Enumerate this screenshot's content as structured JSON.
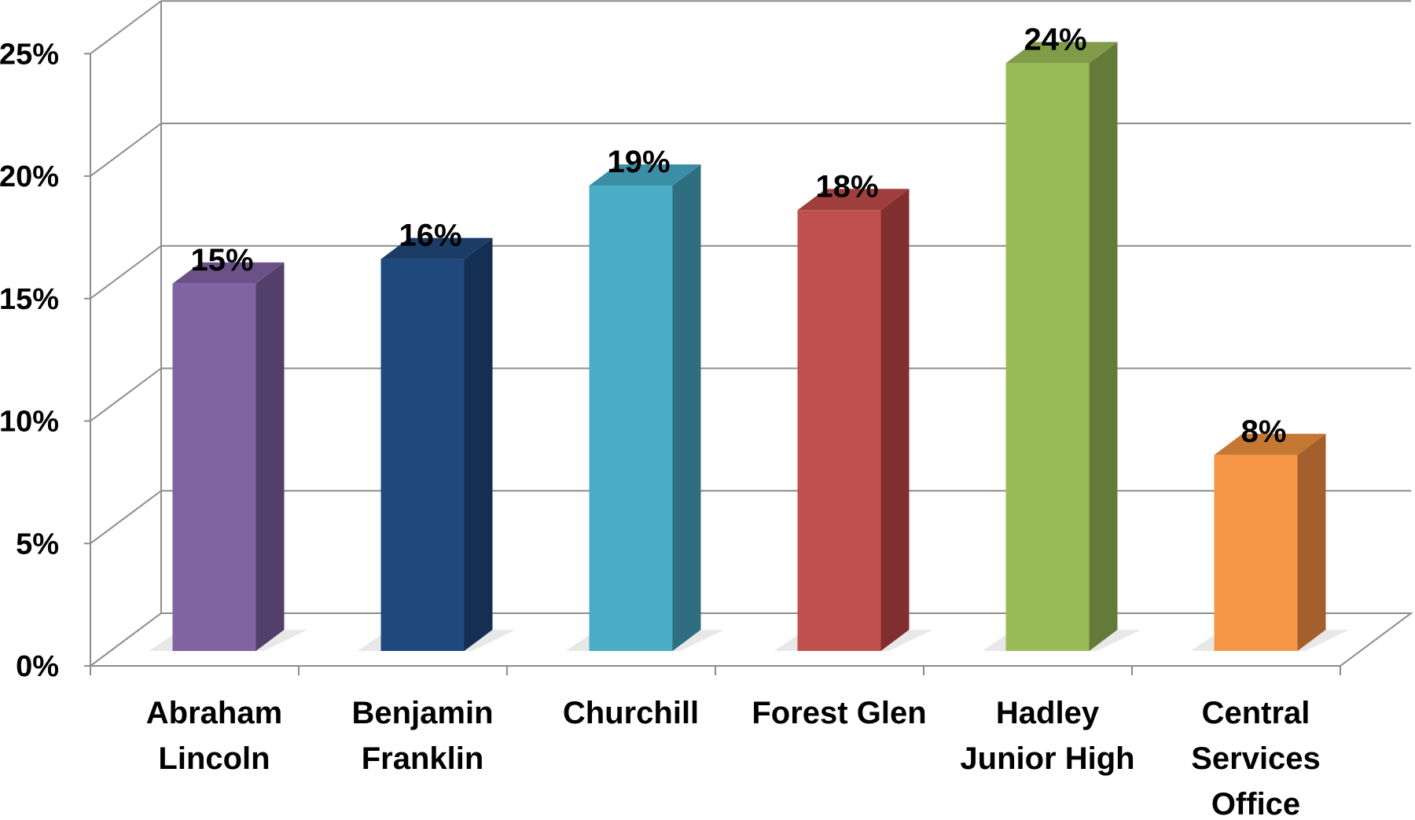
{
  "chart_data": {
    "type": "bar",
    "style": "3d-column",
    "categories": [
      [
        "Abraham",
        "Lincoln"
      ],
      [
        "Benjamin",
        "Franklin"
      ],
      [
        "Churchill"
      ],
      [
        "Forest Glen"
      ],
      [
        "Hadley",
        "Junior High"
      ],
      [
        "Central",
        "Services",
        "Office"
      ]
    ],
    "values": [
      15,
      16,
      19,
      18,
      24,
      8
    ],
    "data_labels": [
      "15%",
      "16%",
      "19%",
      "18%",
      "24%",
      "8%"
    ],
    "colors": [
      "#8064a2",
      "#1f497d",
      "#4bacc6",
      "#c0504d",
      "#9bbb59",
      "#f79646"
    ],
    "side_colors": [
      "#533f6b",
      "#152f52",
      "#2f6e80",
      "#812f2e",
      "#657a38",
      "#a3602c"
    ],
    "top_colors": [
      "#6a5188",
      "#1a3c67",
      "#3a8ea6",
      "#9f3f3d",
      "#809c48",
      "#c57833"
    ],
    "yticks": [
      0,
      5,
      10,
      15,
      20,
      25
    ],
    "ytick_labels": [
      "0%",
      "5%",
      "10%",
      "15%",
      "20%",
      "25%"
    ],
    "ylim": [
      0,
      25
    ],
    "grid": true,
    "title": "",
    "xlabel": "",
    "ylabel": ""
  }
}
